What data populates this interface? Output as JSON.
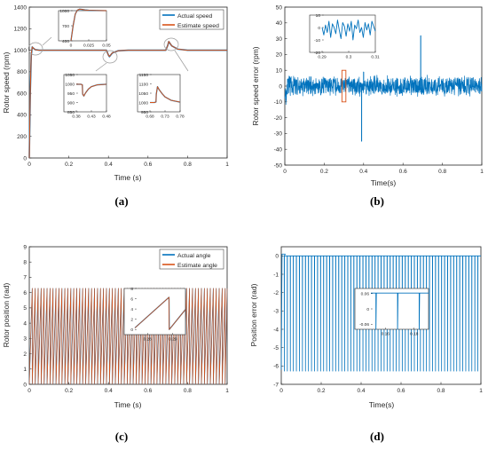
{
  "colors": {
    "blue": "#0072BD",
    "orange": "#D95319",
    "axis": "#262626",
    "inset_box": "#D95319",
    "zoom_circle": "#9a9a9a"
  },
  "captions": {
    "a": "(a)",
    "b": "(b)",
    "c": "(c)",
    "d": "(d)"
  },
  "chart_data": [
    {
      "id": "a",
      "type": "line",
      "xlabel": "Time (s)",
      "ylabel": "Rotor speed (rpm)",
      "xlim": [
        0,
        1
      ],
      "ylim": [
        0,
        1400
      ],
      "xticks": [
        "0",
        "0.2",
        "0.4",
        "0.6",
        "0.8",
        "1"
      ],
      "yticks": [
        "0",
        "200",
        "400",
        "600",
        "800",
        "1000",
        "1200",
        "1400"
      ],
      "legend": [
        "Actual speed",
        "Estimate speed"
      ],
      "legend_position": "top-right",
      "series": [
        {
          "name": "Actual speed",
          "x": [
            0,
            0.005,
            0.01,
            0.015,
            0.02,
            0.03,
            0.05,
            0.1,
            0.39,
            0.4,
            0.405,
            0.42,
            0.45,
            0.5,
            0.69,
            0.7,
            0.705,
            0.72,
            0.75,
            0.8,
            1.0
          ],
          "y": [
            0,
            600,
            950,
            1030,
            1020,
            1005,
            1000,
            1000,
            1000,
            955,
            940,
            975,
            995,
            1000,
            1000,
            1045,
            1080,
            1040,
            1010,
            1000,
            1000
          ]
        },
        {
          "name": "Estimate speed",
          "x": [
            0,
            0.005,
            0.01,
            0.015,
            0.02,
            0.03,
            0.05,
            0.1,
            0.39,
            0.4,
            0.405,
            0.42,
            0.45,
            0.5,
            0.69,
            0.7,
            0.705,
            0.72,
            0.75,
            0.8,
            1.0
          ],
          "y": [
            0,
            610,
            960,
            1030,
            1020,
            1005,
            1000,
            1000,
            1000,
            955,
            942,
            976,
            995,
            1000,
            1000,
            1045,
            1082,
            1040,
            1010,
            1000,
            1000
          ]
        }
      ],
      "insets": [
        {
          "xlim": [
            0,
            0.05
          ],
          "ylim": [
            400,
            1000
          ],
          "xticks": [
            "0",
            "0.025",
            "0.05"
          ],
          "yticks": [
            "400",
            "700",
            "1000"
          ],
          "x": [
            0,
            0.003,
            0.006,
            0.009,
            0.012,
            0.015,
            0.02,
            0.025,
            0.035,
            0.05
          ],
          "y": [
            400,
            700,
            930,
            1010,
            1030,
            1025,
            1015,
            1008,
            1003,
            1000
          ]
        },
        {
          "xlim": [
            0.38,
            0.48
          ],
          "ylim": [
            850,
            1050
          ],
          "xticks": [
            "0.38",
            "0.43",
            "0.48"
          ],
          "yticks": [
            "850",
            "900",
            "950",
            "1000",
            "1050"
          ],
          "x": [
            0.38,
            0.395,
            0.4,
            0.401,
            0.405,
            0.41,
            0.42,
            0.43,
            0.45,
            0.48
          ],
          "y": [
            998,
            998,
            995,
            945,
            935,
            950,
            972,
            985,
            995,
            998
          ]
        },
        {
          "xlim": [
            0.68,
            0.78
          ],
          "ylim": [
            950,
            1150
          ],
          "xticks": [
            "0.68",
            "0.73",
            "0.78"
          ],
          "yticks": [
            "950",
            "1000",
            "1050",
            "1100",
            "1150"
          ],
          "x": [
            0.68,
            0.695,
            0.7,
            0.701,
            0.705,
            0.71,
            0.72,
            0.73,
            0.75,
            0.78
          ],
          "y": [
            1000,
            1000,
            1003,
            1045,
            1085,
            1070,
            1048,
            1030,
            1012,
            1002
          ]
        }
      ]
    },
    {
      "id": "b",
      "type": "line",
      "xlabel": "Time(s)",
      "ylabel": "Rotor speed error (rpm)",
      "xlim": [
        0,
        1
      ],
      "ylim": [
        -50,
        50
      ],
      "xticks": [
        "0",
        "0.2",
        "0.4",
        "0.6",
        "0.8",
        "1"
      ],
      "yticks": [
        "-50",
        "-40",
        "-30",
        "-20",
        "-10",
        "0",
        "10",
        "20",
        "30",
        "40",
        "50"
      ],
      "series": [
        {
          "noise_amplitude": 7,
          "spikes": [
            {
              "x": 0.39,
              "y": -35
            },
            {
              "x": 0.69,
              "y": 32
            },
            {
              "x": 0.4,
              "y": 9
            }
          ]
        }
      ],
      "highlight_box": {
        "xlim": [
          0.29,
          0.31
        ],
        "ylim": [
          -10,
          10
        ]
      },
      "inset": {
        "xlim": [
          0.29,
          0.31
        ],
        "ylim": [
          -20,
          10
        ],
        "xticks": [
          "0.29",
          "0.3",
          "0.31"
        ],
        "yticks": [
          "-20",
          "-10",
          "0",
          "10"
        ],
        "y": [
          0,
          -6,
          2,
          -4,
          5,
          -8,
          3,
          0,
          -5,
          6,
          -2,
          -9,
          4,
          1,
          -7,
          3,
          -3,
          5,
          -10,
          2,
          -1,
          6,
          -4,
          0,
          -8,
          4,
          -2,
          3,
          -6,
          5,
          1,
          -3
        ]
      }
    },
    {
      "id": "c",
      "type": "line",
      "xlabel": "Time (s)",
      "ylabel": "Rotor position (rad)",
      "xlim": [
        0,
        1
      ],
      "ylim": [
        0,
        9
      ],
      "xticks": [
        "0",
        "0.2",
        "0.4",
        "0.6",
        "0.8",
        "1"
      ],
      "yticks": [
        "0",
        "1",
        "2",
        "3",
        "4",
        "5",
        "6",
        "7",
        "8",
        "9"
      ],
      "legend": [
        "Actual angle",
        "Estimate angle"
      ],
      "legend_position": "top-right",
      "series": [
        {
          "name": "Actual angle",
          "period": 0.015,
          "max": 6.28
        },
        {
          "name": "Estimate angle",
          "period": 0.015,
          "max": 6.28
        }
      ],
      "inset": {
        "xlim": [
          0.275,
          0.295
        ],
        "ylim": [
          -1,
          8
        ],
        "xticks": [
          "0.28",
          "0.29"
        ],
        "yticks": [
          "0",
          "2",
          "4",
          "6",
          "8"
        ],
        "x": [
          0.275,
          0.2885,
          0.2886,
          0.295
        ],
        "y": [
          0.3,
          6.28,
          0.0,
          3.9
        ]
      }
    },
    {
      "id": "d",
      "type": "line",
      "xlabel": "Time(s)",
      "ylabel": "Position error (rad)",
      "xlim": [
        0,
        1
      ],
      "ylim": [
        -7,
        0.5
      ],
      "xticks": [
        "0",
        "0.2",
        "0.4",
        "0.6",
        "0.8",
        "1"
      ],
      "yticks": [
        "-7",
        "-6",
        "-5",
        "-4",
        "-3",
        "-2",
        "-1",
        "0"
      ],
      "series": [
        {
          "baseline": 0.0,
          "drop": -6.28,
          "drop_count": 66,
          "early_baseline": 0.1
        }
      ],
      "inset": {
        "xlim": [
          0.15,
          0.19
        ],
        "ylim": [
          -0.08,
          0.08
        ],
        "xticks": [
          "0.16",
          "0.18"
        ],
        "yticks": [
          "-0.06",
          "0",
          "0.06"
        ],
        "drops_at": [
          0.1535,
          0.1685,
          0.1835
        ],
        "baseline": 0.062
      }
    }
  ]
}
